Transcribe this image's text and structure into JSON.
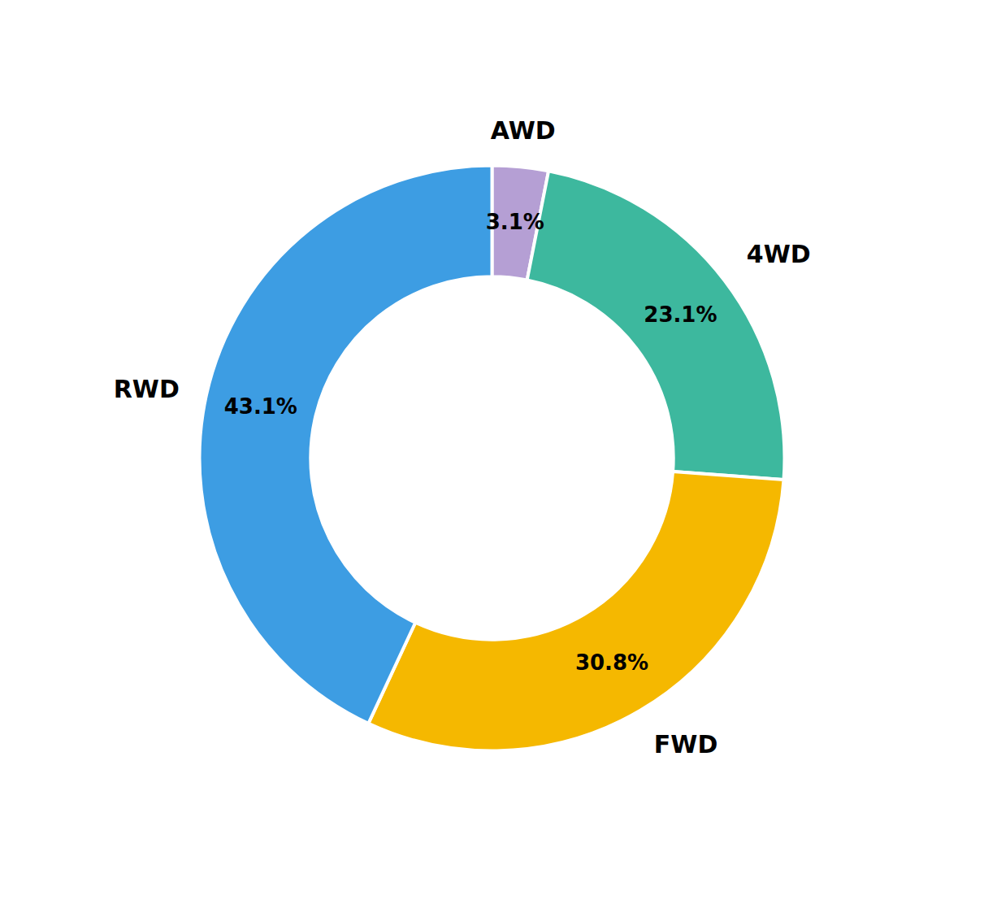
{
  "chart_data": {
    "type": "donut",
    "categories": [
      "AWD",
      "4WD",
      "FWD",
      "RWD"
    ],
    "values": [
      3.1,
      23.1,
      30.8,
      43.1
    ],
    "value_labels": [
      "3.1%",
      "23.1%",
      "30.8%",
      "43.1%"
    ],
    "colors": [
      "#b59fd4",
      "#3db89e",
      "#f5b800",
      "#3d9de3"
    ],
    "data_labels": true
  }
}
